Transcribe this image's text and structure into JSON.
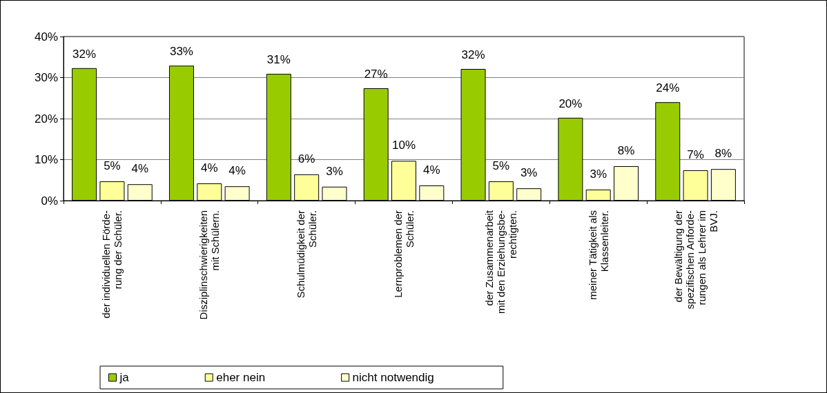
{
  "chart_data": {
    "type": "bar",
    "categories": [
      "der individuellen Förde-\nrung der Schüler.",
      "Disziplinschwierigkeiten\nmit Schülern.",
      "Schulmüdigkeit der\nSchüler.",
      "Lernproblemen der\nSchüler.",
      "der Zusammenarbeit\nmit den Erziehungsbe-\nrechtigten.",
      "meiner Tätigkeit als\nKlassenleiter.",
      "der Bewältigung der\nspezifischen Anforde-\nrungen als Lehrer im\nBVJ."
    ],
    "series": [
      {
        "name": "ja",
        "color": "#99cc00",
        "values": [
          32.3,
          32.9,
          30.9,
          27.4,
          32.1,
          20.2,
          24.0
        ],
        "value_labels": [
          "32%",
          "33%",
          "31%",
          "27%",
          "32%",
          "20%",
          "24%"
        ]
      },
      {
        "name": "eher nein",
        "color": "#ffff99",
        "values": [
          4.7,
          4.2,
          6.4,
          9.7,
          4.7,
          2.7,
          7.4
        ],
        "value_labels": [
          "5%",
          "4%",
          "6%",
          "10%",
          "5%",
          "3%",
          "7%"
        ]
      },
      {
        "name": "nicht notwendig",
        "color": "#ffffcc",
        "values": [
          4.0,
          3.5,
          3.4,
          3.7,
          3.0,
          8.4,
          7.7
        ],
        "value_labels": [
          "4%",
          "4%",
          "3%",
          "4%",
          "3%",
          "8%",
          "8%"
        ]
      }
    ],
    "ylim": [
      0,
      40
    ],
    "yticks": [
      {
        "value": 0,
        "label": "0%"
      },
      {
        "value": 10,
        "label": "10%"
      },
      {
        "value": 20,
        "label": "20%"
      },
      {
        "value": 30,
        "label": "30%"
      },
      {
        "value": 40,
        "label": "40%"
      }
    ],
    "grid": "y",
    "legend": "bottom left"
  }
}
